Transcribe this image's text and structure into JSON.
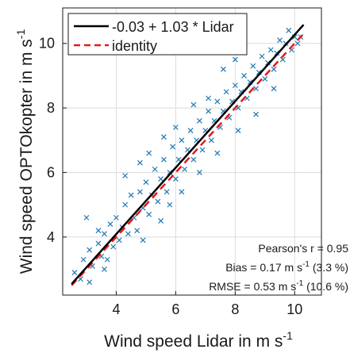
{
  "chart_data": {
    "type": "scatter",
    "title": "",
    "xlabel": "Wind speed Lidar in m s",
    "xlabel_sup": "-1",
    "ylabel": "Wind speed OPTOkopter in m s",
    "ylabel_sup": "-1",
    "xlim": [
      2.2,
      10.9
    ],
    "ylim": [
      2.2,
      11.1
    ],
    "x_ticks": [
      4,
      6,
      8,
      10
    ],
    "y_ticks": [
      4,
      6,
      8,
      10
    ],
    "grid": true,
    "legend_position": "top-left",
    "colors": {
      "points": "#1f77b4",
      "fit": "#000000",
      "identity": "#e41a1c",
      "grid": "#dcdcdc",
      "axis": "#1a1a1a"
    },
    "fit": {
      "label": "-0.03 + 1.03 * Lidar",
      "intercept": -0.03,
      "slope": 1.03,
      "x_range": [
        2.5,
        10.3
      ]
    },
    "identity": {
      "label": "identity",
      "x_range": [
        2.5,
        10.3
      ]
    },
    "stats": {
      "pearson": "Pearson's r = 0.95",
      "bias_main": "Bias = 0.17 m s",
      "bias_sup": "-1",
      "bias_pct": " (3.3 %)",
      "rmse_main": "RMSE = 0.53 m s",
      "rmse_sup": "-1",
      "rmse_pct": " (10.6 %)"
    },
    "points": [
      [
        2.6,
        2.9
      ],
      [
        2.8,
        2.7
      ],
      [
        2.9,
        3.3
      ],
      [
        3.1,
        2.6
      ],
      [
        3.1,
        3.6
      ],
      [
        3.2,
        3.1
      ],
      [
        3.4,
        3.8
      ],
      [
        3.5,
        3.4
      ],
      [
        3.6,
        4.1
      ],
      [
        3.7,
        3.3
      ],
      [
        3.8,
        4.4
      ],
      [
        3.9,
        3.7
      ],
      [
        4.0,
        4.6
      ],
      [
        4.1,
        3.9
      ],
      [
        4.2,
        4.3
      ],
      [
        4.3,
        5.0
      ],
      [
        4.4,
        4.1
      ],
      [
        4.5,
        5.3
      ],
      [
        4.6,
        4.6
      ],
      [
        4.7,
        4.2
      ],
      [
        4.8,
        5.4
      ],
      [
        4.9,
        4.9
      ],
      [
        5.0,
        5.7
      ],
      [
        5.1,
        4.7
      ],
      [
        5.2,
        5.3
      ],
      [
        5.3,
        6.1
      ],
      [
        5.4,
        5.1
      ],
      [
        5.5,
        5.8
      ],
      [
        5.6,
        6.4
      ],
      [
        5.7,
        5.4
      ],
      [
        5.8,
        6.0
      ],
      [
        5.9,
        6.8
      ],
      [
        6.0,
        5.8
      ],
      [
        6.1,
        6.4
      ],
      [
        6.2,
        7.0
      ],
      [
        6.3,
        6.1
      ],
      [
        6.4,
        6.7
      ],
      [
        6.5,
        7.3
      ],
      [
        6.6,
        6.4
      ],
      [
        6.7,
        7.0
      ],
      [
        6.8,
        7.6
      ],
      [
        6.9,
        6.7
      ],
      [
        7.0,
        7.3
      ],
      [
        7.1,
        7.9
      ],
      [
        7.2,
        7.0
      ],
      [
        7.3,
        7.6
      ],
      [
        7.4,
        8.2
      ],
      [
        7.5,
        7.4
      ],
      [
        7.6,
        7.9
      ],
      [
        7.7,
        8.5
      ],
      [
        7.8,
        7.7
      ],
      [
        7.9,
        8.2
      ],
      [
        8.0,
        8.7
      ],
      [
        8.1,
        8.0
      ],
      [
        8.2,
        8.5
      ],
      [
        8.3,
        9.0
      ],
      [
        8.4,
        8.3
      ],
      [
        8.5,
        8.8
      ],
      [
        8.6,
        9.3
      ],
      [
        8.7,
        8.6
      ],
      [
        8.8,
        9.1
      ],
      [
        8.9,
        9.6
      ],
      [
        9.0,
        8.9
      ],
      [
        9.1,
        9.4
      ],
      [
        9.2,
        9.8
      ],
      [
        9.3,
        9.2
      ],
      [
        9.4,
        9.7
      ],
      [
        9.5,
        10.1
      ],
      [
        9.6,
        9.5
      ],
      [
        9.7,
        10.0
      ],
      [
        9.8,
        10.4
      ],
      [
        9.9,
        9.8
      ],
      [
        10.0,
        10.2
      ],
      [
        10.1,
        10.0
      ],
      [
        10.2,
        10.2
      ],
      [
        3.0,
        4.6
      ],
      [
        3.4,
        4.2
      ],
      [
        4.3,
        5.9
      ],
      [
        4.8,
        6.3
      ],
      [
        5.1,
        6.6
      ],
      [
        5.6,
        7.1
      ],
      [
        6.0,
        7.4
      ],
      [
        6.6,
        8.1
      ],
      [
        7.1,
        8.3
      ],
      [
        7.6,
        9.2
      ],
      [
        8.0,
        9.5
      ],
      [
        4.9,
        3.9
      ],
      [
        5.5,
        4.5
      ],
      [
        6.2,
        5.4
      ],
      [
        6.8,
        6.0
      ],
      [
        7.4,
        6.6
      ],
      [
        8.1,
        7.3
      ],
      [
        8.7,
        7.8
      ],
      [
        9.3,
        8.6
      ],
      [
        3.6,
        3.0
      ],
      [
        5.8,
        5.0
      ]
    ]
  }
}
